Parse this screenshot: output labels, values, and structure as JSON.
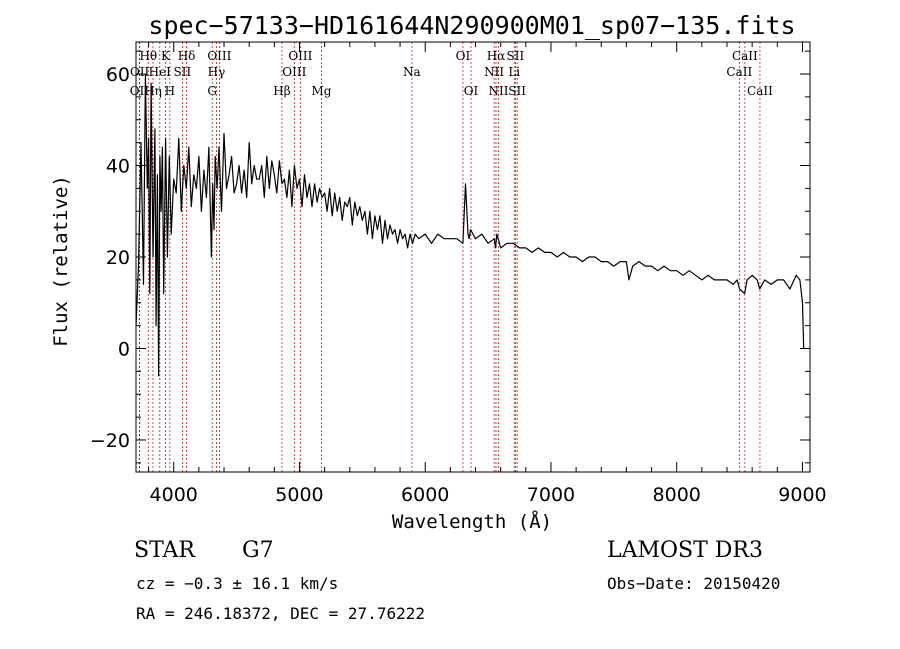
{
  "chart_data": {
    "type": "line",
    "title": "spec−57133−HD161644N290900M01_sp07−135.fits",
    "xlabel": "Wavelength (Å)",
    "ylabel": "Flux (relative)",
    "xlim": [
      3700,
      9060
    ],
    "ylim": [
      -27,
      67
    ],
    "xticks": [
      4000,
      5000,
      6000,
      7000,
      8000,
      9000
    ],
    "xtick_labels": [
      "4000",
      "5000",
      "6000",
      "7000",
      "8000",
      "9000"
    ],
    "yticks": [
      -20,
      0,
      20,
      40,
      60
    ],
    "ytick_labels": [
      "−20",
      "0",
      "20",
      "40",
      "60"
    ],
    "series": [
      {
        "name": "spectrum",
        "x": [
          3700,
          3720,
          3740,
          3760,
          3775,
          3790,
          3800,
          3810,
          3820,
          3835,
          3850,
          3860,
          3870,
          3880,
          3890,
          3900,
          3910,
          3920,
          3935,
          3950,
          3965,
          3980,
          4000,
          4020,
          4040,
          4060,
          4080,
          4100,
          4120,
          4140,
          4160,
          4180,
          4200,
          4220,
          4240,
          4260,
          4280,
          4300,
          4310,
          4320,
          4330,
          4345,
          4360,
          4380,
          4400,
          4420,
          4440,
          4460,
          4480,
          4500,
          4520,
          4540,
          4560,
          4580,
          4600,
          4620,
          4640,
          4660,
          4680,
          4700,
          4720,
          4740,
          4760,
          4780,
          4800,
          4820,
          4840,
          4860,
          4880,
          4900,
          4920,
          4940,
          4960,
          4980,
          5000,
          5020,
          5040,
          5060,
          5080,
          5100,
          5120,
          5140,
          5160,
          5180,
          5200,
          5220,
          5240,
          5260,
          5280,
          5300,
          5320,
          5340,
          5360,
          5380,
          5400,
          5420,
          5440,
          5460,
          5480,
          5500,
          5520,
          5540,
          5560,
          5580,
          5600,
          5620,
          5640,
          5660,
          5680,
          5700,
          5720,
          5740,
          5760,
          5780,
          5800,
          5820,
          5840,
          5860,
          5880,
          5900,
          5920,
          5950,
          6000,
          6050,
          6100,
          6150,
          6200,
          6250,
          6300,
          6320,
          6340,
          6350,
          6360,
          6400,
          6450,
          6500,
          6550,
          6560,
          6570,
          6600,
          6650,
          6700,
          6750,
          6800,
          6850,
          6900,
          6950,
          7000,
          7050,
          7100,
          7150,
          7200,
          7250,
          7300,
          7350,
          7400,
          7450,
          7500,
          7550,
          7600,
          7620,
          7650,
          7700,
          7750,
          7800,
          7850,
          7900,
          7950,
          8000,
          8050,
          8100,
          8150,
          8200,
          8250,
          8300,
          8350,
          8400,
          8450,
          8480,
          8500,
          8540,
          8560,
          8600,
          8640,
          8660,
          8700,
          8750,
          8800,
          8850,
          8900,
          8950,
          8980,
          9000,
          9010
        ],
        "values": [
          5,
          18,
          45,
          14,
          60,
          35,
          46,
          12,
          58,
          20,
          48,
          5,
          38,
          -6,
          42,
          30,
          44,
          12,
          46,
          20,
          42,
          25,
          37,
          34,
          46,
          30,
          40,
          35,
          44,
          31,
          38,
          35,
          42,
          30,
          39,
          33,
          44,
          20,
          36,
          26,
          42,
          35,
          44,
          30,
          47,
          35,
          38,
          42,
          34,
          36,
          40,
          34,
          39,
          33,
          45,
          36,
          40,
          37,
          37,
          40,
          33,
          42,
          35,
          41,
          38,
          34,
          41,
          36,
          37,
          33,
          39,
          31,
          40,
          35,
          37,
          31,
          38,
          33,
          36,
          31,
          36,
          32,
          35,
          33,
          34,
          30,
          35,
          29,
          34,
          30,
          33,
          28,
          32,
          31,
          33,
          27,
          32,
          29,
          31,
          28,
          30,
          25,
          30,
          24,
          29,
          26,
          29,
          23,
          28,
          24,
          27,
          25,
          26,
          23,
          26,
          24,
          25,
          22,
          25,
          23,
          25,
          24,
          25,
          23,
          25,
          24,
          24,
          24,
          23,
          36,
          25,
          24,
          26,
          24,
          25,
          23,
          24,
          22,
          25,
          22,
          23,
          23,
          22,
          22,
          21,
          22,
          21,
          21,
          20,
          21,
          20,
          20,
          19,
          20,
          20,
          19,
          19,
          18,
          19,
          19,
          15,
          18,
          19,
          18,
          18,
          17,
          18,
          17,
          17,
          16,
          17,
          16,
          15,
          16,
          15,
          15,
          15,
          14,
          15,
          13,
          12,
          15,
          16,
          15,
          13,
          15,
          14,
          15,
          15,
          13,
          16,
          15,
          10,
          0
        ]
      }
    ],
    "spectral_lines": [
      {
        "label": "Hθ",
        "wl": 3798,
        "row": 0
      },
      {
        "label": "OII",
        "wl": 3727,
        "row": 2
      },
      {
        "label": "OII",
        "wl": 3729,
        "row": 1
      },
      {
        "label": "Hη",
        "wl": 3835,
        "row": 2
      },
      {
        "label": "HeI",
        "wl": 3889,
        "row": 1
      },
      {
        "label": "K",
        "wl": 3934,
        "row": 0
      },
      {
        "label": "H",
        "wl": 3969,
        "row": 2
      },
      {
        "label": "SII",
        "wl": 4069,
        "row": 1
      },
      {
        "label": "Hδ",
        "wl": 4102,
        "row": 0
      },
      {
        "label": "G",
        "wl": 4306,
        "row": 2
      },
      {
        "label": "Hγ",
        "wl": 4340,
        "row": 1
      },
      {
        "label": "OIII",
        "wl": 4363,
        "row": 0
      },
      {
        "label": "Hβ",
        "wl": 4861,
        "row": 2
      },
      {
        "label": "OIII",
        "wl": 4959,
        "row": 1
      },
      {
        "label": "OIII",
        "wl": 5007,
        "row": 0
      },
      {
        "label": "Mg",
        "wl": 5175,
        "row": 2
      },
      {
        "label": "Na",
        "wl": 5894,
        "row": 1
      },
      {
        "label": "OI",
        "wl": 6300,
        "row": 0
      },
      {
        "label": "OI",
        "wl": 6364,
        "row": 2
      },
      {
        "label": "NII",
        "wl": 6548,
        "row": 1
      },
      {
        "label": "Hα",
        "wl": 6563,
        "row": 0
      },
      {
        "label": "NII",
        "wl": 6583,
        "row": 2
      },
      {
        "label": "Li",
        "wl": 6708,
        "row": 1
      },
      {
        "label": "SII",
        "wl": 6717,
        "row": 0
      },
      {
        "label": "SII",
        "wl": 6731,
        "row": 2
      },
      {
        "label": "CaII",
        "wl": 8498,
        "row": 1
      },
      {
        "label": "CaII",
        "wl": 8542,
        "row": 0
      },
      {
        "label": "CaII",
        "wl": 8662,
        "row": 2
      }
    ]
  },
  "info": {
    "object_class": "STAR",
    "subclass": "G7",
    "survey": "LAMOST DR3",
    "redshift": "cz = −0.3 ± 16.1 km/s",
    "obs_date": "Obs−Date: 20150420",
    "coords": "RA = 246.18372, DEC =  27.76222"
  },
  "colors": {
    "spectrum": "#000000",
    "line_marker": "#b22222",
    "axis": "#000000"
  }
}
